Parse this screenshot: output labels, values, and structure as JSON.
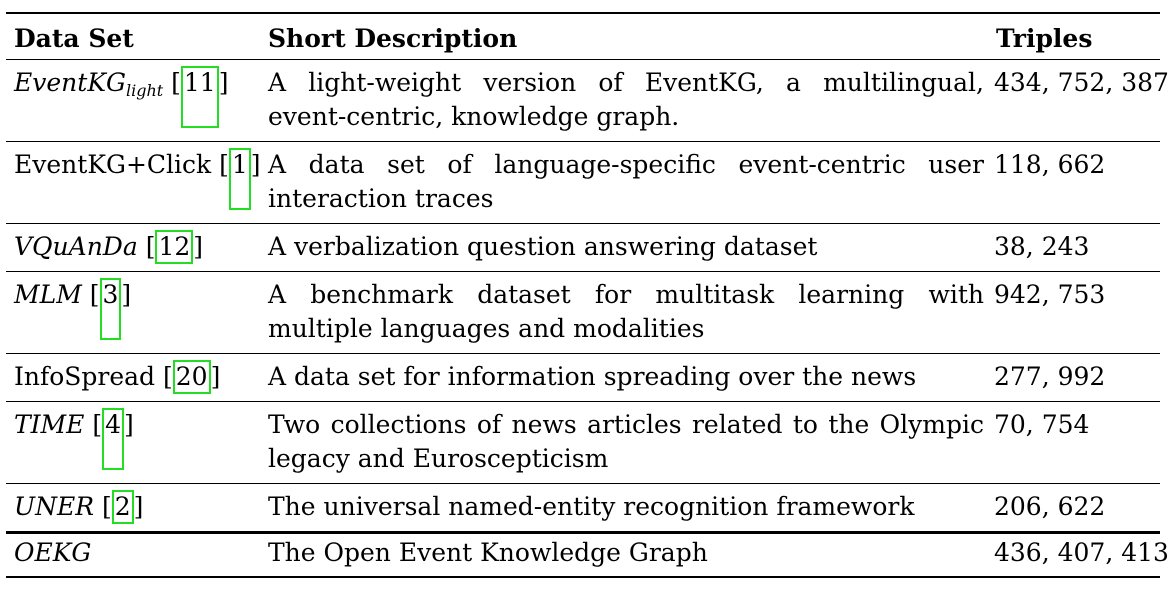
{
  "headers": {
    "dataset": "Data Set",
    "description": "Short Description",
    "triples": "Triples"
  },
  "rows": [
    {
      "name": "EventKG",
      "subscript": "light",
      "italic": true,
      "citation": "11",
      "description": "A light-weight version of EventKG, a multilingual, event-centric, knowledge graph.",
      "triples": "434, 752, 387"
    },
    {
      "name": "EventKG+Click",
      "italic": false,
      "citation": "1",
      "description": "A data set of language-specific event-centric user interaction traces",
      "triples": "118, 662"
    },
    {
      "name": "VQuAnDa",
      "italic": true,
      "citation": "12",
      "description": "A verbalization question answering dataset",
      "triples": "38, 243"
    },
    {
      "name": "MLM",
      "italic": true,
      "citation": "3",
      "description": "A benchmark dataset for multitask learning with multiple languages and modalities",
      "triples": "942, 753"
    },
    {
      "name": "InfoSpread",
      "italic": false,
      "citation": "20",
      "description": "A data set for information spreading over the news",
      "triples": "277, 992"
    },
    {
      "name": "TIME",
      "italic": true,
      "citation": "4",
      "description": "Two collections of news articles related to the Olympic legacy and Euroscepticism",
      "triples": "70, 754"
    },
    {
      "name": "UNER",
      "italic": true,
      "citation": "2",
      "description": "The universal named-entity recognition framework",
      "triples": "206, 622"
    }
  ],
  "total": {
    "name": "OEKG",
    "description": "The Open Event Knowledge Graph",
    "triples": "436, 407, 413"
  },
  "colors": {
    "citation_box": "#22dd22",
    "rules": "#000000"
  }
}
